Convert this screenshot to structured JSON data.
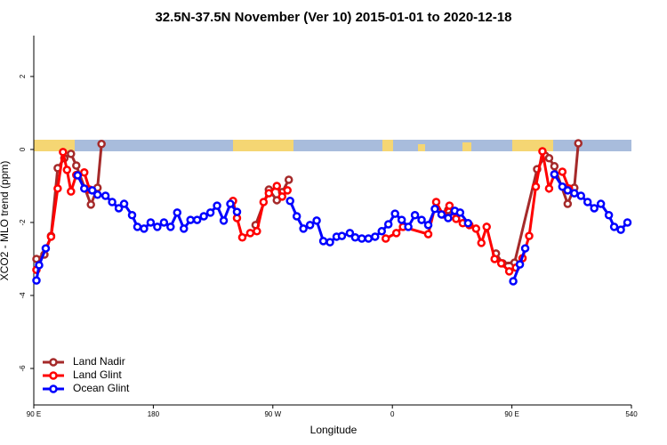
{
  "chart_data": {
    "type": "line",
    "title": "32.5N-37.5N November (Ver 10)   2015-01-01 to 2020-12-18",
    "xlabel": "Longitude",
    "ylabel": "XCO2 - MLO trend (ppm)",
    "xlim": [
      90,
      540
    ],
    "ylim": [
      -7,
      3.12
    ],
    "xticks": [
      {
        "value": 90,
        "label": "90 E"
      },
      180,
      {
        "value": 270,
        "label": "90 W"
      },
      {
        "value": 360,
        "label": "0"
      },
      {
        "value": 450,
        "label": "90 E"
      },
      540
    ],
    "yticks": [
      -6,
      -4,
      -2,
      0,
      2
    ],
    "legend": "bottom-left",
    "series": [
      {
        "name": "Land Nadir",
        "color": "#a52a2a",
        "x": [
          92,
          98,
          103,
          108,
          113,
          118,
          122,
          133,
          138,
          141,
          257,
          267,
          273,
          277,
          282,
          402,
          438,
          443,
          452,
          469,
          475,
          478,
          482,
          492,
          497,
          500
        ],
        "values": [
          -3.0,
          -2.88,
          -2.37,
          -0.51,
          -0.24,
          -0.12,
          -0.44,
          -1.51,
          -1.05,
          0.15,
          -2.07,
          -1.1,
          -1.39,
          -1.17,
          -0.83,
          -1.66,
          -2.85,
          -3.12,
          -3.1,
          -0.54,
          -0.17,
          -0.24,
          -0.46,
          -1.49,
          -1.05,
          0.17
        ]
      },
      {
        "name": "Land Glint",
        "color": "#ff0000",
        "x": [
          92,
          103,
          108,
          112,
          115,
          118,
          122,
          128,
          132,
          240,
          243,
          247,
          253,
          258,
          263,
          267,
          273,
          277,
          281,
          355,
          363,
          368,
          387,
          393,
          398,
          403,
          408,
          413,
          418,
          423,
          427,
          431,
          437,
          442,
          448,
          453,
          458,
          463,
          468,
          473,
          478,
          482,
          488,
          493
        ],
        "values": [
          -3.3,
          -2.39,
          -1.07,
          -0.07,
          -0.56,
          -1.15,
          -0.7,
          -0.63,
          -1.1,
          -1.41,
          -1.88,
          -2.41,
          -2.29,
          -2.24,
          -1.44,
          -1.2,
          -1.0,
          -1.29,
          -1.12,
          -2.44,
          -2.29,
          -2.12,
          -2.32,
          -1.44,
          -1.78,
          -1.54,
          -1.9,
          -2.02,
          -2.07,
          -2.17,
          -2.56,
          -2.12,
          -3.0,
          -3.12,
          -3.34,
          -3.24,
          -2.98,
          -2.37,
          -1.02,
          -0.05,
          -1.07,
          -0.68,
          -0.61,
          -1.07
        ]
      },
      {
        "name": "Ocean Glint",
        "color": "#0000ff",
        "x": [
          92,
          94,
          99,
          123,
          128,
          134,
          138,
          144,
          149,
          154,
          158,
          164,
          168,
          173,
          178,
          183,
          188,
          193,
          198,
          203,
          208,
          213,
          218,
          223,
          228,
          233,
          238,
          243,
          283,
          288,
          293,
          298,
          303,
          308,
          313,
          318,
          322,
          328,
          332,
          337,
          342,
          347,
          352,
          357,
          362,
          367,
          372,
          377,
          382,
          387,
          392,
          397,
          402,
          407,
          411,
          417,
          451,
          456,
          460,
          482,
          488,
          492,
          497,
          502,
          507,
          512,
          517,
          523,
          527,
          532,
          537
        ],
        "values": [
          -3.59,
          -3.17,
          -2.71,
          -0.71,
          -1.07,
          -1.12,
          -1.24,
          -1.27,
          -1.44,
          -1.61,
          -1.49,
          -1.8,
          -2.12,
          -2.17,
          -2.0,
          -2.12,
          -2.0,
          -2.12,
          -1.73,
          -2.17,
          -1.93,
          -1.93,
          -1.83,
          -1.73,
          -1.54,
          -1.95,
          -1.49,
          -1.71,
          -1.41,
          -1.83,
          -2.17,
          -2.07,
          -1.95,
          -2.51,
          -2.54,
          -2.39,
          -2.37,
          -2.29,
          -2.41,
          -2.44,
          -2.44,
          -2.39,
          -2.24,
          -2.05,
          -1.76,
          -1.93,
          -2.12,
          -1.8,
          -1.93,
          -2.07,
          -1.63,
          -1.78,
          -1.88,
          -1.68,
          -1.73,
          -2.02,
          -3.61,
          -3.15,
          -2.71,
          -0.68,
          -1.02,
          -1.12,
          -1.2,
          -1.27,
          -1.44,
          -1.61,
          -1.49,
          -1.8,
          -2.12,
          -2.2,
          -2.0
        ]
      }
    ]
  }
}
